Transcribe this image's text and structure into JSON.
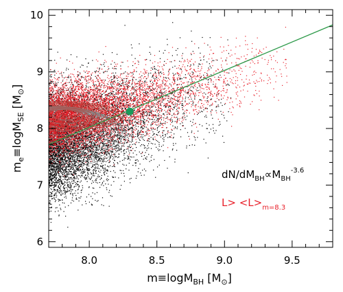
{
  "chart_data": {
    "type": "scatter",
    "title": "",
    "xlabel": {
      "main": "m≡logM",
      "sub": "BH",
      "unit_open": " [M",
      "unit_sym": "⊙",
      "unit_close": "]"
    },
    "ylabel": {
      "main": "m",
      "sub1": "e",
      "mid": "≡logM",
      "sub2": "SE",
      "unit_open": " [M",
      "unit_sym": "⊙",
      "unit_close": "]"
    },
    "xlim": [
      7.7,
      9.8
    ],
    "ylim": [
      5.9,
      10.1
    ],
    "xticks": [
      8.0,
      8.5,
      9.0,
      9.5
    ],
    "xticklabels": [
      "8.0",
      "8.5",
      "9.0",
      "9.5"
    ],
    "yticks": [
      6,
      7,
      8,
      9,
      10
    ],
    "yticklabels": [
      "6",
      "7",
      "8",
      "9",
      "10"
    ],
    "grid": false,
    "series": [
      {
        "name": "dN/dM_BH ∝ M_BH^-3.6",
        "kind": "scatter",
        "color": "#000000",
        "note": "full sample, black points",
        "ridge": [
          [
            7.7,
            7.7
          ],
          [
            8.0,
            7.9
          ],
          [
            8.5,
            8.3
          ],
          [
            9.0,
            8.7
          ],
          [
            9.5,
            9.1
          ]
        ],
        "scatter_dex": 0.45
      },
      {
        "name": "L > <L>_m=8.3",
        "kind": "scatter",
        "color": "#e8202a",
        "note": "luminosity-selected subsample, red points",
        "ridge": [
          [
            7.7,
            8.15
          ],
          [
            8.0,
            8.25
          ],
          [
            8.5,
            8.55
          ],
          [
            9.0,
            8.85
          ],
          [
            9.5,
            9.2
          ]
        ],
        "scatter_dex": 0.3
      }
    ],
    "lines": [
      {
        "kind": "line",
        "color": "#2e9a4a",
        "x": [
          7.7,
          9.8
        ],
        "y": [
          7.72,
          9.83
        ]
      }
    ],
    "marker": {
      "x": 8.3,
      "y": 8.3,
      "color": "#1a9a5a",
      "shape": "circle"
    },
    "legend": [
      {
        "text": "dN/dM",
        "sub": "BH",
        "text2": "∝M",
        "sub2": "BH",
        "sup": "-3.6",
        "color": "#000000"
      },
      {
        "text": "L> <L>",
        "sub": "m=8.3",
        "color": "#e8202a"
      }
    ],
    "legend_position": "lower-right",
    "colors": {
      "black": "#000000",
      "red": "#e8202a",
      "green": "#2e9a4a",
      "contour_gray": "#888888",
      "contour_red": "#b8403a"
    }
  }
}
